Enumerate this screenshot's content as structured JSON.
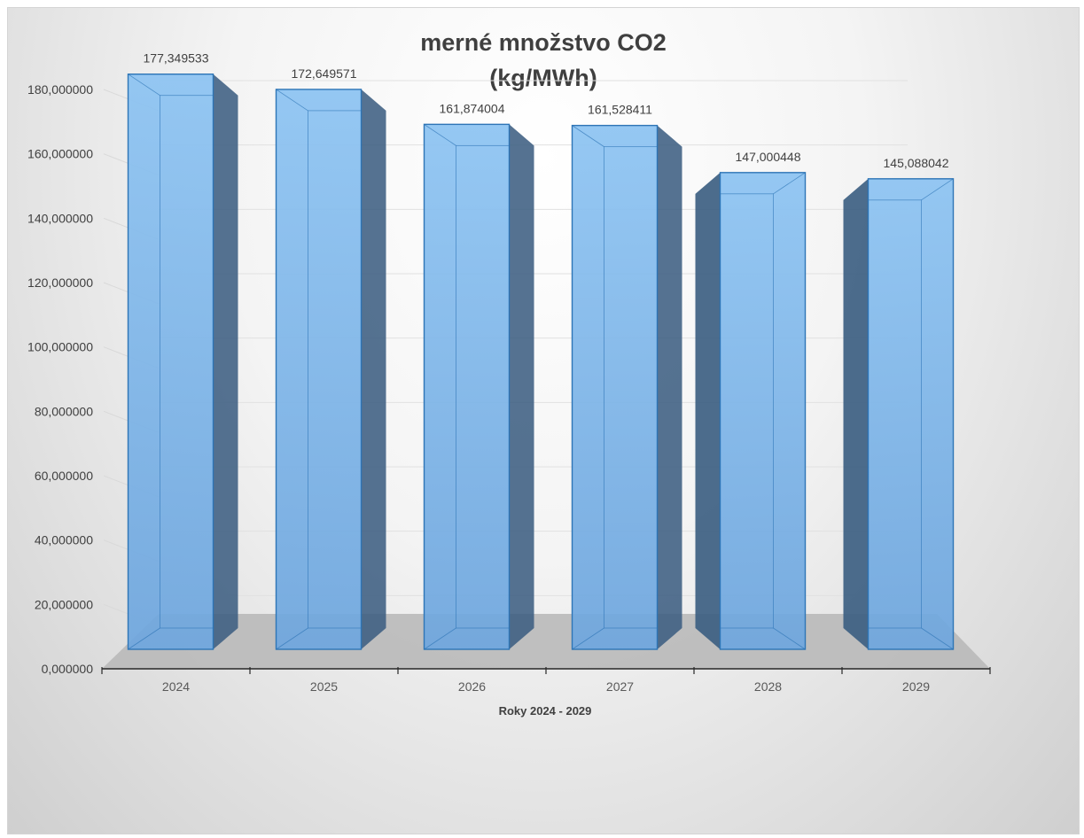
{
  "chart_data": {
    "type": "bar",
    "title": "merné množstvo CO2",
    "subtitle": "(kg/MWh)",
    "xlabel": "Roky 2024 - 2029",
    "ylabel": "",
    "categories": [
      "2024",
      "2025",
      "2026",
      "2027",
      "2028",
      "2029"
    ],
    "values": [
      177.349533,
      172.649571,
      161.874004,
      161.528411,
      147.000448,
      145.088042
    ],
    "data_labels": [
      "177,349533",
      "172,649571",
      "161,874004",
      "161,528411",
      "147,000448",
      "145,088042"
    ],
    "ylim": [
      0,
      180
    ],
    "y_ticks": [
      0,
      20,
      40,
      60,
      80,
      100,
      120,
      140,
      160,
      180
    ],
    "y_tick_labels": [
      "0,000000",
      "20,000000",
      "40,000000",
      "60,000000",
      "80,000000",
      "100,000000",
      "120,000000",
      "140,000000",
      "160,000000",
      "180,000000"
    ],
    "grid": true,
    "legend": "none",
    "style": "3d-column",
    "colors": {
      "bar_front": "#7ab4ea",
      "bar_edge": "#2e75b6",
      "bar_side": "#3d5f82",
      "floor": "#b9b9b9"
    }
  }
}
